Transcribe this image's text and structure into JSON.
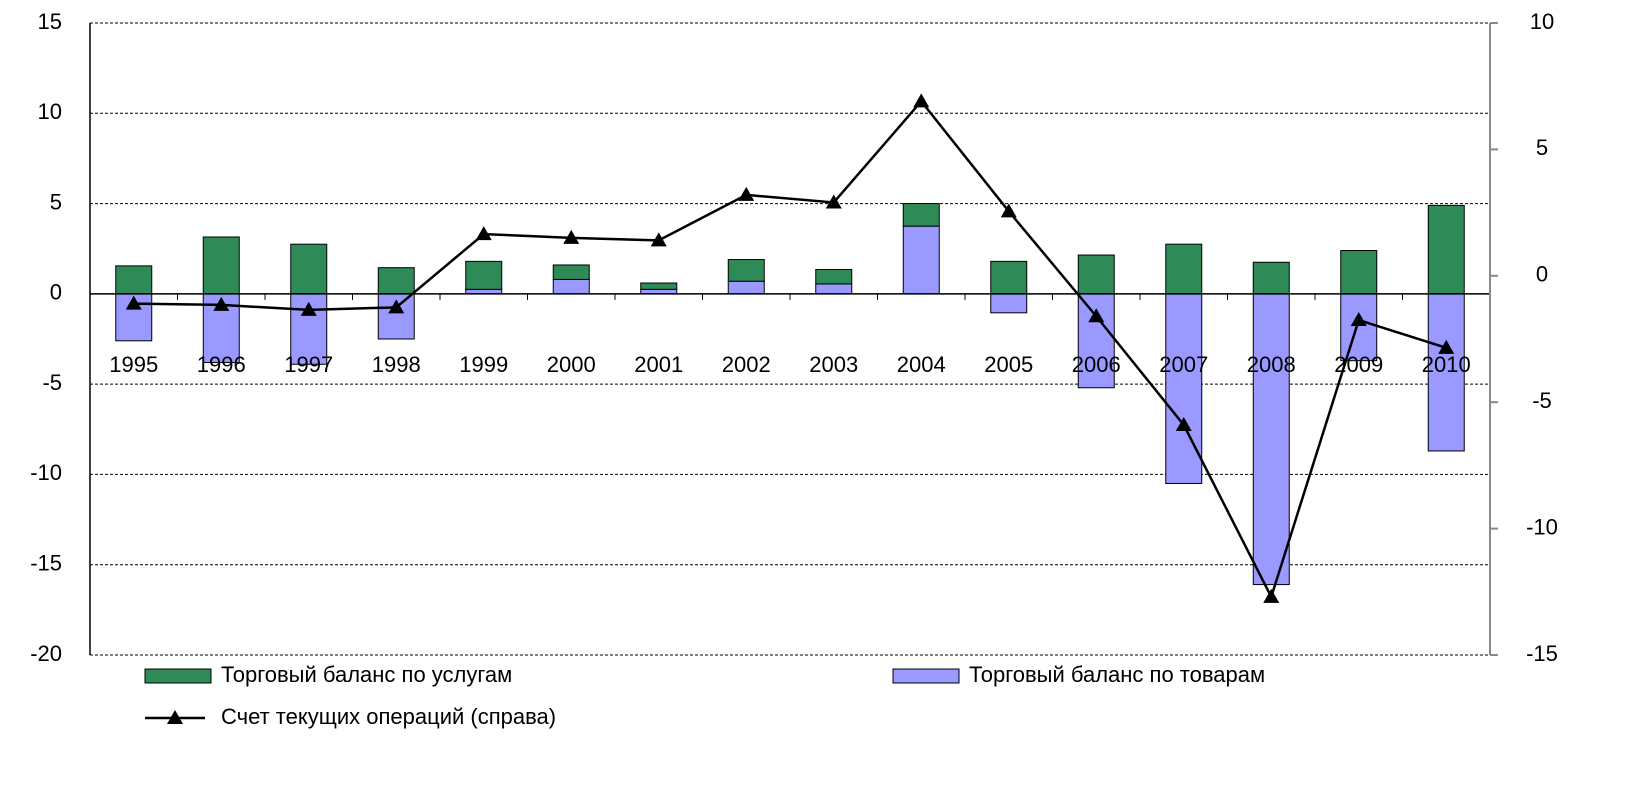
{
  "chart_data": {
    "type": "bar",
    "categories": [
      "1995",
      "1996",
      "1997",
      "1998",
      "1999",
      "2000",
      "2001",
      "2002",
      "2003",
      "2004",
      "2005",
      "2006",
      "2007",
      "2008",
      "2009",
      "2010"
    ],
    "series": [
      {
        "name": "Торговый баланс по услугам",
        "color": "#2e8b57",
        "type": "bar",
        "values": [
          1.55,
          3.15,
          2.75,
          1.45,
          1.55,
          0.8,
          0.35,
          1.2,
          0.8,
          1.25,
          1.8,
          2.15,
          2.75,
          1.75,
          2.4,
          4.9
        ]
      },
      {
        "name": "Торговый баланс по товарам",
        "color": "#9999ff",
        "type": "bar",
        "values": [
          -2.6,
          -3.8,
          -3.9,
          -2.5,
          0.25,
          0.8,
          0.25,
          0.7,
          0.55,
          3.75,
          -1.05,
          -5.2,
          -10.5,
          -16.1,
          -3.7,
          -8.7
        ]
      },
      {
        "name": "Счет текущих операций (справа)",
        "color": "#000000",
        "type": "line",
        "axis": "y2",
        "values": [
          -1.1,
          -1.15,
          -1.35,
          -1.25,
          1.65,
          1.5,
          1.4,
          3.2,
          2.9,
          6.9,
          2.55,
          -1.6,
          -5.9,
          -12.7,
          -1.75,
          -2.85
        ]
      }
    ],
    "ylim": [
      -20,
      15
    ],
    "yticks": [
      -20,
      -15,
      -10,
      -5,
      0,
      5,
      10,
      15
    ],
    "y2lim": [
      -15,
      10
    ],
    "y2ticks": [
      -15,
      -10,
      -5,
      0,
      5,
      10
    ],
    "grid": true,
    "legend": "bottom"
  }
}
